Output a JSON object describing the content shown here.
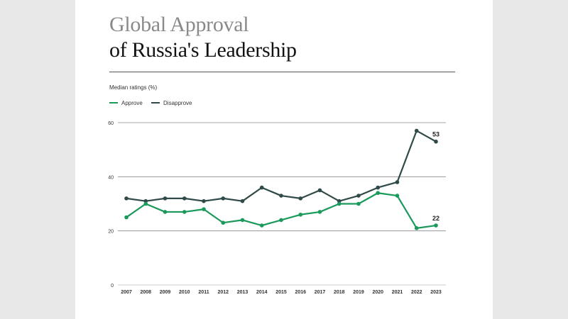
{
  "title_line1": "Global Approval",
  "title_line2": "of Russia's Leadership",
  "subtitle": "Median ratings (%)",
  "colors": {
    "approve": "#1a9a5a",
    "disapprove": "#2f4a48",
    "grid": "#888888"
  },
  "legend": [
    {
      "label": "Approve",
      "color_key": "approve"
    },
    {
      "label": "Disapprove",
      "color_key": "disapprove"
    }
  ],
  "chart_data": {
    "type": "line",
    "x": [
      "2007",
      "2008",
      "2009",
      "2010",
      "2011",
      "2012",
      "2013",
      "2014",
      "2015",
      "2016",
      "2017",
      "2018",
      "2019",
      "2020",
      "2021",
      "2022",
      "2023"
    ],
    "ylim": [
      0,
      60
    ],
    "yticks": [
      0,
      20,
      40,
      60
    ],
    "grid": true,
    "legend_position": "top-left",
    "series": [
      {
        "name": "Approve",
        "color_key": "approve",
        "values": [
          25,
          30,
          27,
          27,
          28,
          23,
          24,
          22,
          24,
          26,
          27,
          30,
          30,
          34,
          33,
          21,
          22
        ],
        "end_label": "22"
      },
      {
        "name": "Disapprove",
        "color_key": "disapprove",
        "values": [
          32,
          31,
          32,
          32,
          31,
          32,
          31,
          36,
          33,
          32,
          35,
          31,
          33,
          36,
          38,
          57,
          53
        ],
        "end_label": "53"
      }
    ]
  }
}
